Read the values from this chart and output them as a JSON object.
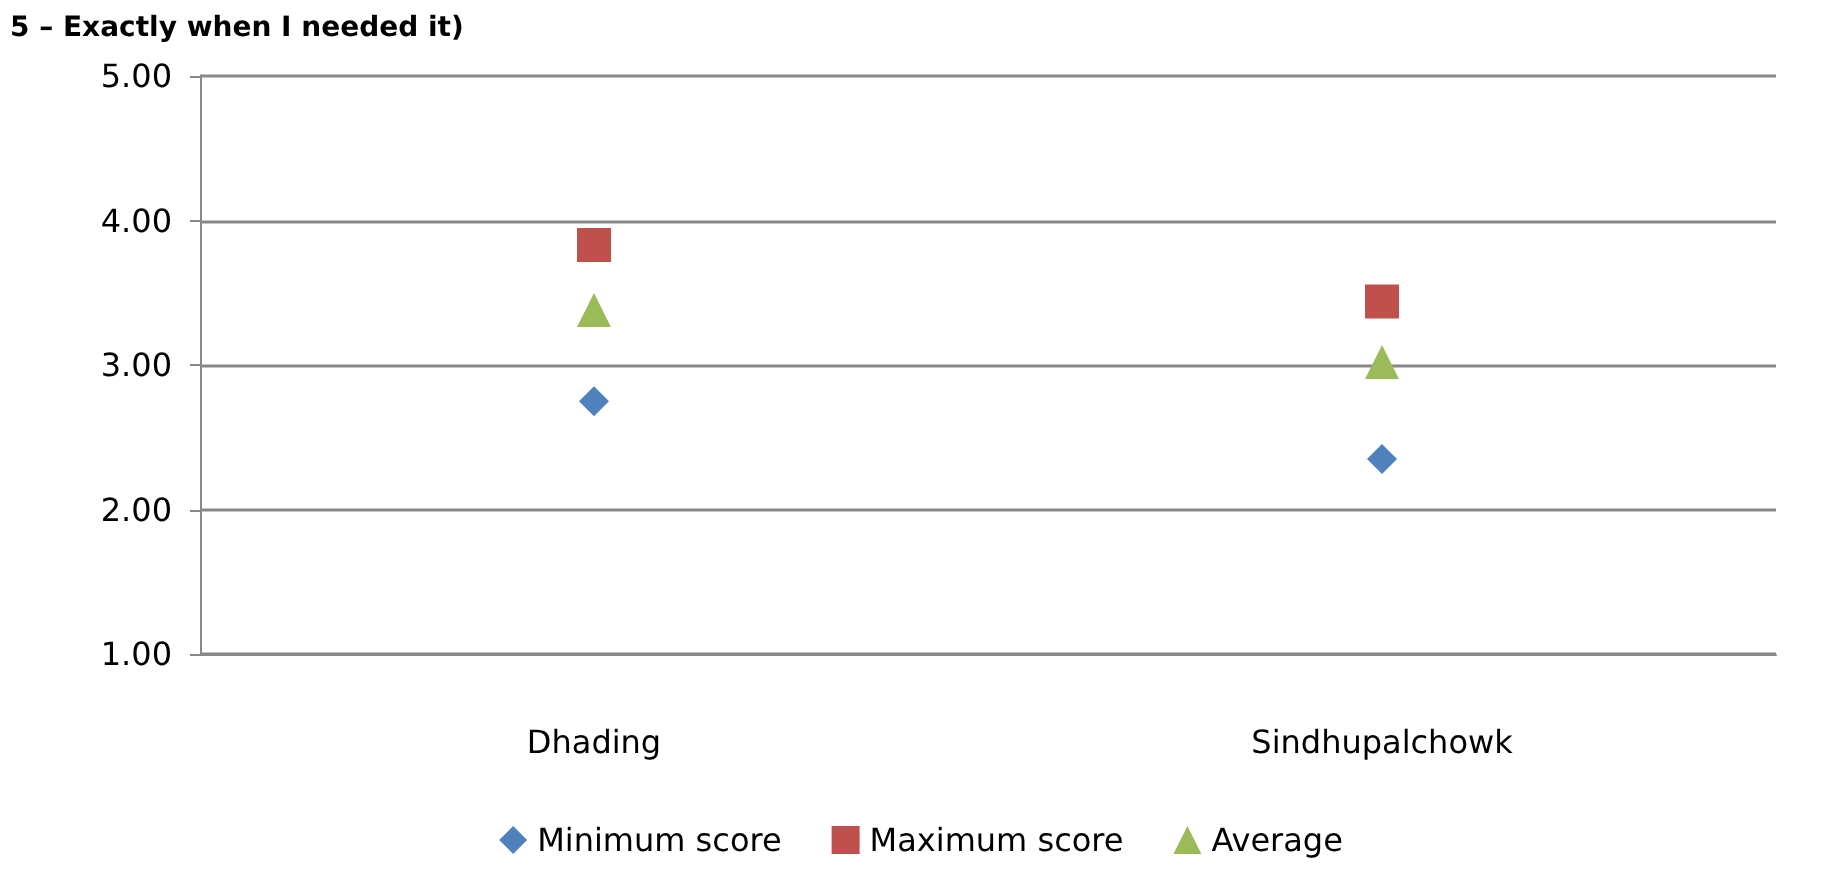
{
  "chart_data": {
    "type": "scatter",
    "title": "5 – Exactly when I needed it)",
    "categories": [
      "Dhading",
      "Sindhupalchowk"
    ],
    "series": [
      {
        "name": "Minimum score",
        "color": "#4f81bd",
        "marker": "diamond",
        "values": [
          2.75,
          2.35
        ]
      },
      {
        "name": "Maximum score",
        "color": "#c0504d",
        "marker": "square",
        "values": [
          3.83,
          3.44
        ]
      },
      {
        "name": "Average",
        "color": "#9bbb59",
        "marker": "triangle",
        "values": [
          3.38,
          3.02
        ]
      }
    ],
    "ylim": [
      1,
      5
    ],
    "yticks": [
      {
        "value": 1,
        "label": "1.00"
      },
      {
        "value": 2,
        "label": "2.00"
      },
      {
        "value": 3,
        "label": "3.00"
      },
      {
        "value": 4,
        "label": "4.00"
      },
      {
        "value": 5,
        "label": "5.00"
      }
    ],
    "grid": "y",
    "legend": "bottom"
  }
}
